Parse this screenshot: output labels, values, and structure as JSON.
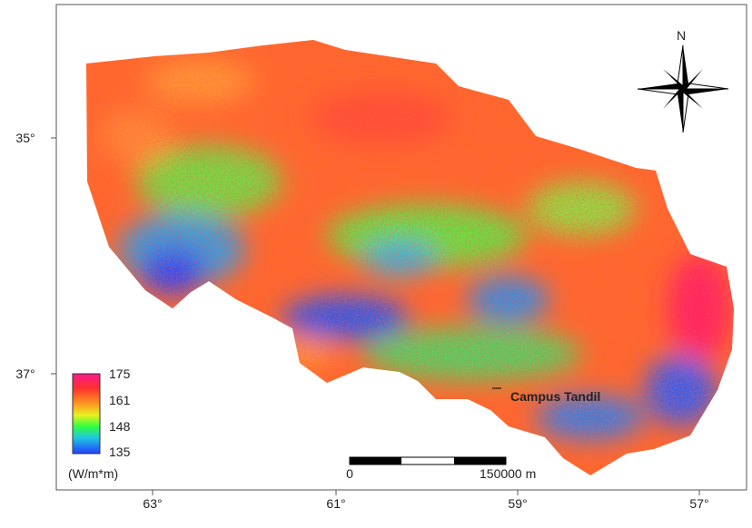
{
  "map": {
    "lon_labels": [
      "63°",
      "61°",
      "59°",
      "57°"
    ],
    "lat_labels": [
      "35°",
      "37°"
    ],
    "north": "N",
    "place_label": "Campus Tandil",
    "legend": {
      "labels": [
        "175",
        "161",
        "148",
        "135"
      ],
      "unit": "(W/m*m)"
    },
    "scale_bar": {
      "start": "0",
      "end": "150000 m"
    }
  }
}
